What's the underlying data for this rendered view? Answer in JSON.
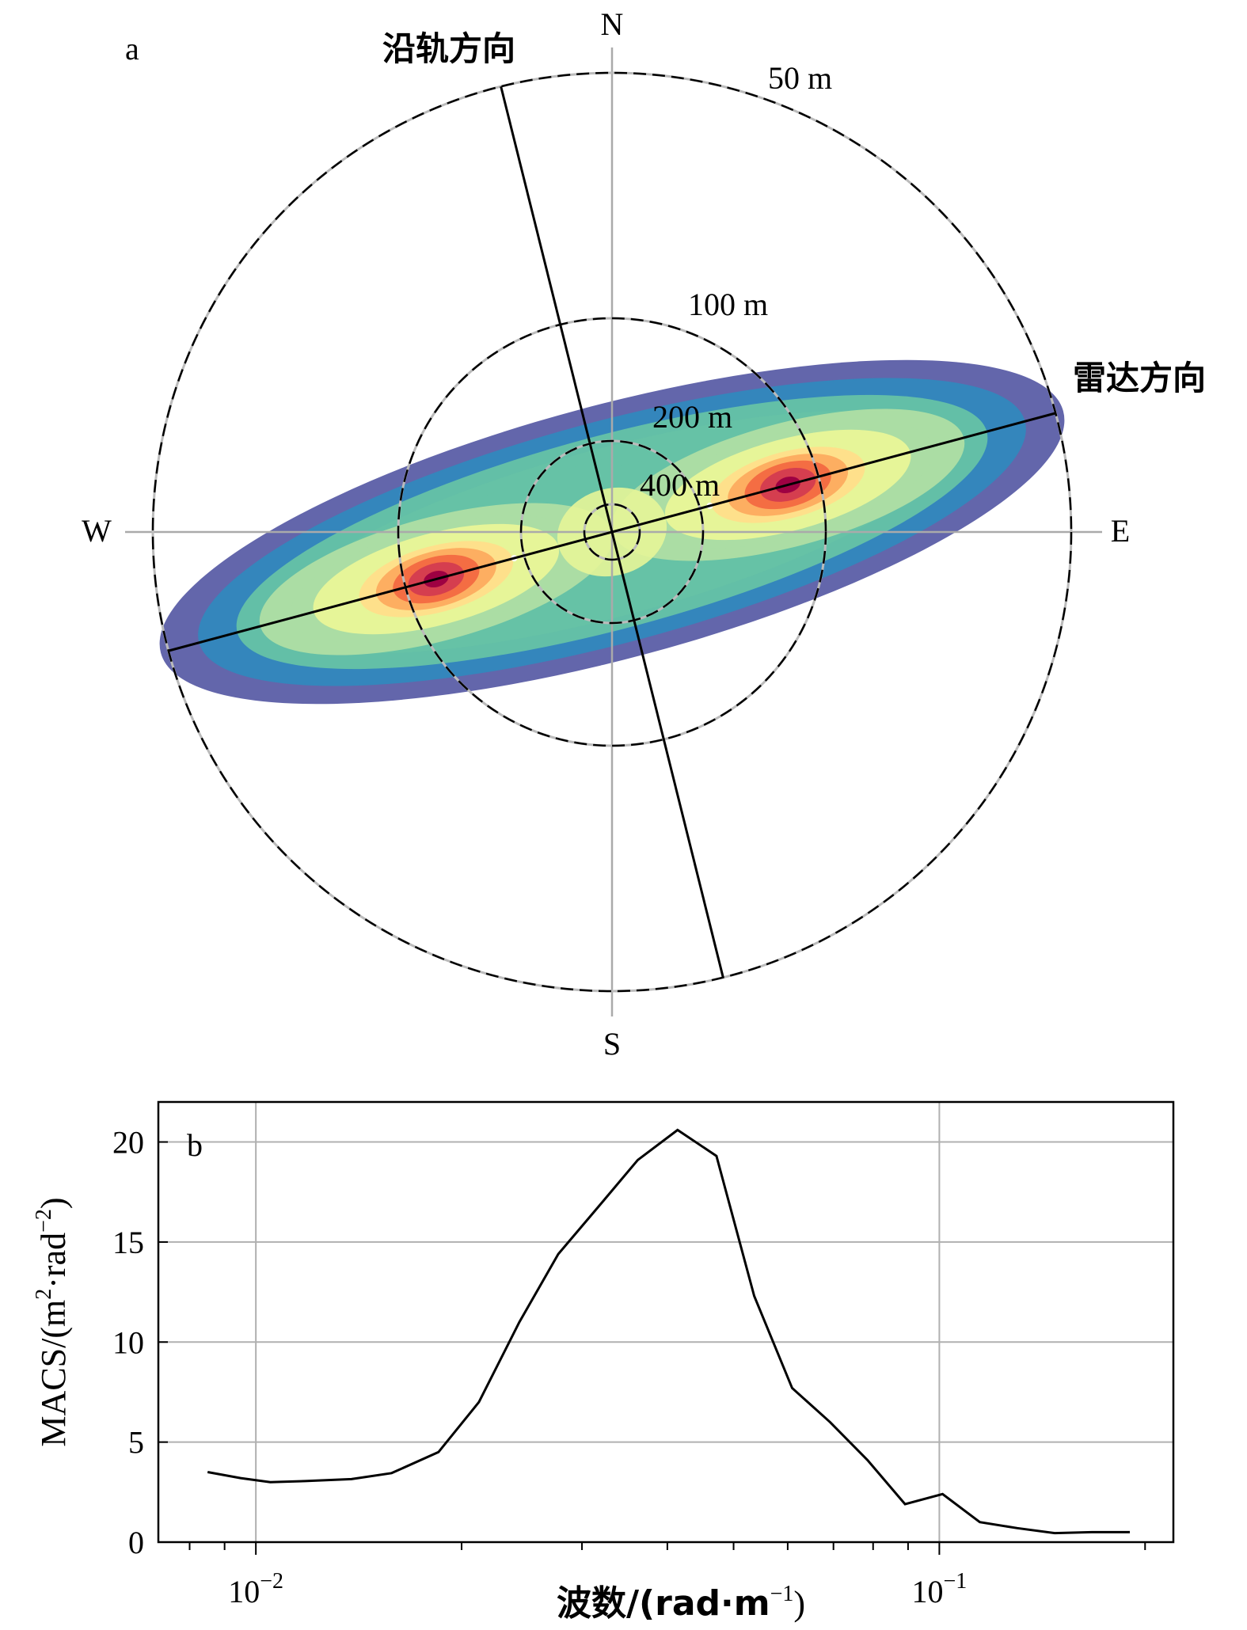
{
  "chart_data": [
    {
      "type": "heatmap",
      "panel_label": "a",
      "compass": {
        "north": "N",
        "south": "S",
        "east": "E",
        "west": "W"
      },
      "ring_labels": [
        "50 m",
        "100 m",
        "200 m",
        "400 m"
      ],
      "direction_labels": {
        "along_track": "沿轨方向",
        "radar": "雷达方向"
      },
      "along_track_bearing_deg": 166,
      "radar_bearing_deg": 75,
      "colormap": [
        "#5b5ea6",
        "#3288bd",
        "#66c2a5",
        "#abdda4",
        "#e6f598",
        "#fee08b",
        "#fdae61",
        "#f46d43",
        "#d53e4f",
        "#9e0142"
      ],
      "peaks": [
        {
          "wavelength_m": 128,
          "bearing_deg": 75
        },
        {
          "wavelength_m": 128,
          "bearing_deg": 255
        }
      ],
      "grid": true
    },
    {
      "type": "line",
      "panel_label": "b",
      "xlabel": "波数/(rad·m",
      "xlabel_sup": "−1",
      "xlabel_close": ")",
      "ylabel": "MACS/(m",
      "ylabel_sup1": "2",
      "ylabel_mid": "·rad",
      "ylabel_sup2": "−2",
      "ylabel_close": ")",
      "x_scale": "log",
      "xlim": [
        0.0072,
        0.22
      ],
      "ylim": [
        0,
        22
      ],
      "x_ticks": [
        {
          "value": 0.01,
          "base": "10",
          "exp": "−2"
        },
        {
          "value": 0.1,
          "base": "10",
          "exp": "−1"
        }
      ],
      "y_ticks": [
        0,
        5,
        10,
        15,
        20
      ],
      "grid": true,
      "series": [
        {
          "x": [
            0.0085,
            0.0095,
            0.0105,
            0.0118,
            0.0138,
            0.0158,
            0.0185,
            0.0212,
            0.0243,
            0.0277,
            0.0316,
            0.0362,
            0.0414,
            0.0472,
            0.0536,
            0.0609,
            0.0692,
            0.0785,
            0.0891,
            0.1011,
            0.1146,
            0.13,
            0.1475,
            0.1672,
            0.19
          ],
          "y": [
            3.5,
            3.2,
            3.0,
            3.05,
            3.15,
            3.45,
            4.5,
            7.0,
            11.0,
            14.4,
            16.7,
            19.1,
            20.6,
            19.3,
            12.3,
            7.7,
            6.0,
            4.1,
            1.9,
            2.4,
            1.0,
            0.7,
            0.45,
            0.5,
            0.5
          ]
        }
      ]
    }
  ]
}
